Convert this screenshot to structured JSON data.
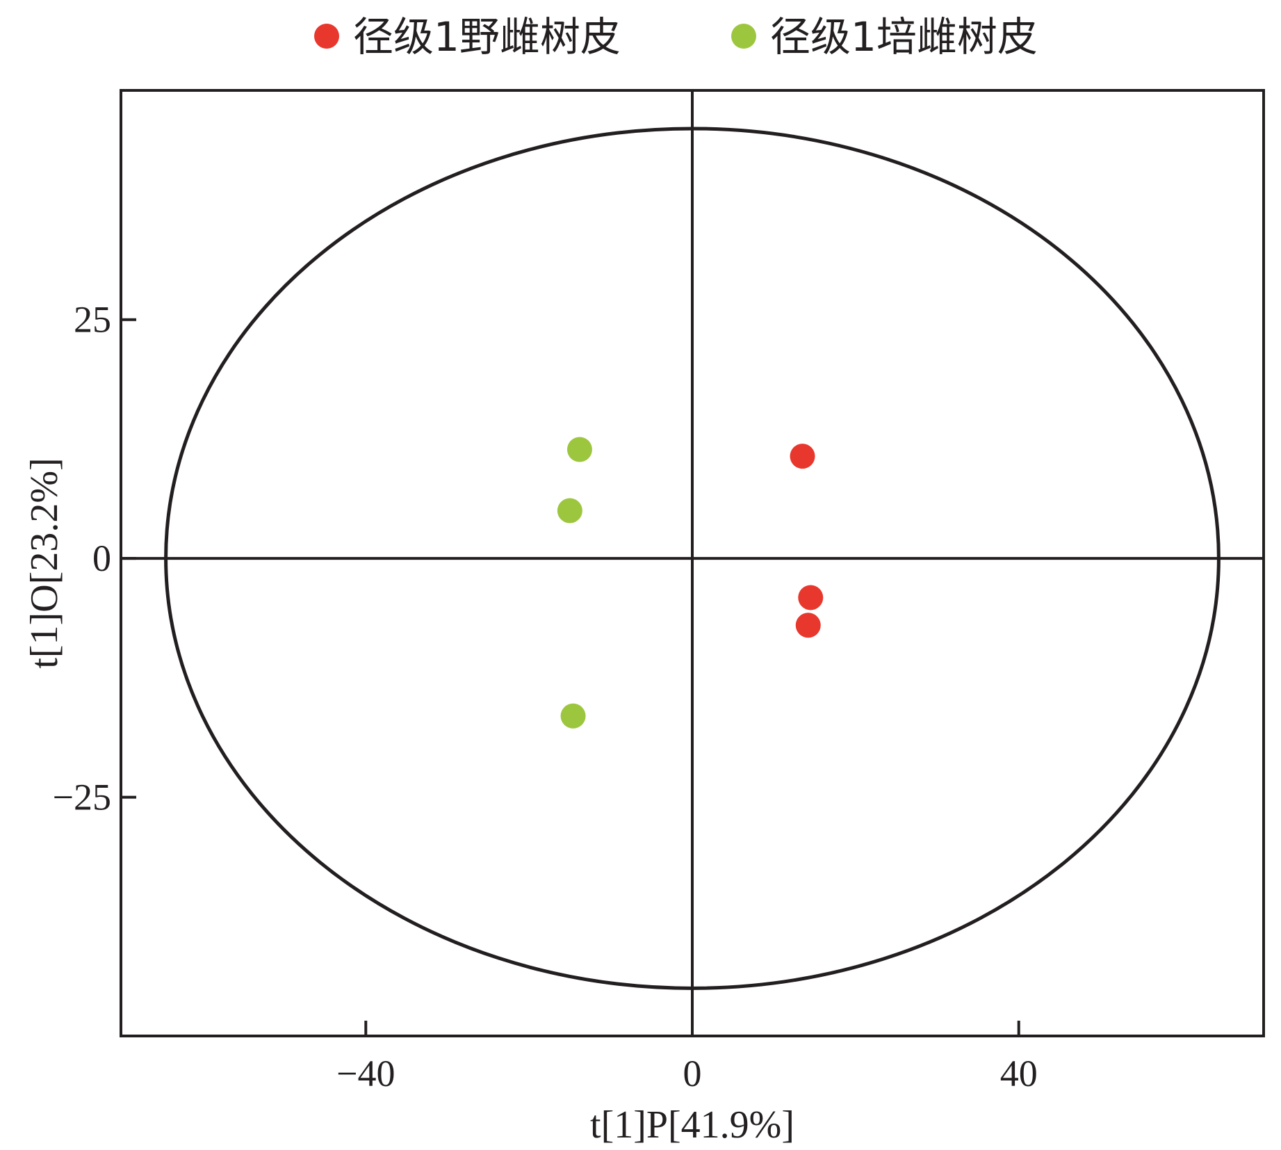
{
  "chart_data": {
    "type": "scatter",
    "xlabel": "t[1]P[41.9%]",
    "ylabel": "t[1]O[23.2%]",
    "xlim": [
      -70,
      70
    ],
    "ylim": [
      -50,
      49
    ],
    "xticks": [
      -40,
      0,
      40
    ],
    "xtick_labels": [
      "−40",
      "0",
      "40"
    ],
    "yticks": [
      -25,
      0,
      25
    ],
    "ytick_labels": [
      "−25",
      "0",
      "25"
    ],
    "grid": false,
    "zero_lines": true,
    "legend_position": "top-center",
    "ellipse": {
      "center": [
        0,
        0
      ],
      "rx": 64.5,
      "ry": 45
    },
    "series": [
      {
        "name": "径级1野雌树皮",
        "color": "#e8372c",
        "points": [
          [
            13.5,
            10.7
          ],
          [
            14.5,
            -4.1
          ],
          [
            14.2,
            -7.0
          ]
        ]
      },
      {
        "name": "径级1培雌树皮",
        "color": "#9dc63f",
        "points": [
          [
            -13.8,
            11.4
          ],
          [
            -15.0,
            5.0
          ],
          [
            -14.6,
            -16.5
          ]
        ]
      }
    ]
  }
}
